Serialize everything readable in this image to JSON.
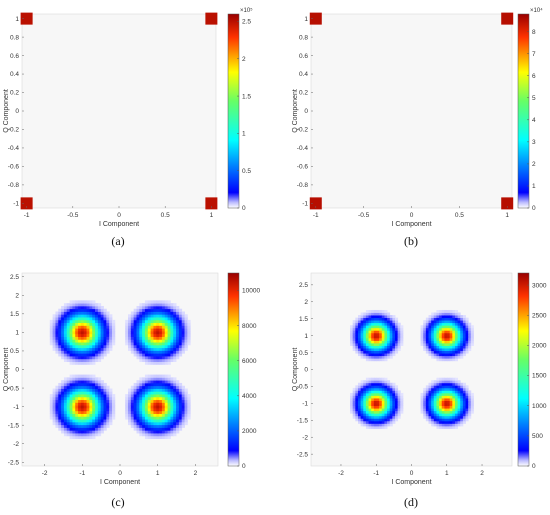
{
  "chart_data": [
    {
      "type": "heatmap",
      "caption": "(a)",
      "xlabel": "I Component",
      "ylabel": "Q Component",
      "xlim": [
        -1.05,
        1.05
      ],
      "ylim": [
        -1.05,
        1.05
      ],
      "xticks": [
        -1,
        -0.5,
        0,
        0.5,
        1
      ],
      "yticks": [
        -1,
        -0.8,
        -0.6,
        -0.4,
        -0.2,
        0,
        0.2,
        0.4,
        0.6,
        0.8,
        1
      ],
      "clusters": [
        {
          "i": -1,
          "q": 1,
          "spread": 0,
          "peak": 250000
        },
        {
          "i": 1,
          "q": 1,
          "spread": 0,
          "peak": 250000
        },
        {
          "i": -1,
          "q": -1,
          "spread": 0,
          "peak": 250000
        },
        {
          "i": 1,
          "q": -1,
          "spread": 0,
          "peak": 250000
        }
      ],
      "colorbar": {
        "min": 0,
        "max": 260000,
        "ticks": [
          0,
          0.5,
          1,
          1.5,
          2,
          2.5
        ],
        "exponent": "×10⁵",
        "scale": 100000
      }
    },
    {
      "type": "heatmap",
      "caption": "(b)",
      "xlabel": "I Component",
      "ylabel": "Q Component",
      "xlim": [
        -1.05,
        1.05
      ],
      "ylim": [
        -1.05,
        1.05
      ],
      "xticks": [
        -1,
        -0.5,
        0,
        0.5,
        1
      ],
      "yticks": [
        -1,
        -0.8,
        -0.6,
        -0.4,
        -0.2,
        0,
        0.2,
        0.4,
        0.6,
        0.8,
        1
      ],
      "clusters": [
        {
          "i": -1,
          "q": 1,
          "spread": 0,
          "peak": 85000
        },
        {
          "i": 1,
          "q": 1,
          "spread": 0,
          "peak": 85000
        },
        {
          "i": -1,
          "q": -1,
          "spread": 0,
          "peak": 85000
        },
        {
          "i": 1,
          "q": -1,
          "spread": 0,
          "peak": 85000
        }
      ],
      "colorbar": {
        "min": 0,
        "max": 88000,
        "ticks": [
          0,
          1,
          2,
          3,
          4,
          5,
          6,
          7,
          8
        ],
        "exponent": "×10⁴",
        "scale": 10000
      }
    },
    {
      "type": "heatmap",
      "caption": "(c)",
      "xlabel": "I Component",
      "ylabel": "Q Component",
      "xlim": [
        -2.6,
        2.6
      ],
      "ylim": [
        -2.6,
        2.6
      ],
      "xticks": [
        -2,
        -1,
        0,
        1,
        2
      ],
      "yticks": [
        -2.5,
        -2,
        -1.5,
        -1,
        -0.5,
        0,
        0.5,
        1,
        1.5,
        2,
        2.5
      ],
      "clusters": [
        {
          "i": -1,
          "q": 1,
          "spread": 0.3,
          "peak": 10500
        },
        {
          "i": 1,
          "q": 1,
          "spread": 0.3,
          "peak": 10500
        },
        {
          "i": -1,
          "q": -1,
          "spread": 0.3,
          "peak": 10500
        },
        {
          "i": 1,
          "q": -1,
          "spread": 0.3,
          "peak": 10500
        }
      ],
      "colorbar": {
        "min": 0,
        "max": 11000,
        "ticks": [
          0,
          2000,
          4000,
          6000,
          8000,
          10000
        ],
        "exponent": "",
        "scale": 1
      }
    },
    {
      "type": "heatmap",
      "caption": "(d)",
      "xlabel": "I Component",
      "ylabel": "Q Component",
      "xlim": [
        -2.85,
        2.85
      ],
      "ylim": [
        -2.85,
        2.85
      ],
      "xticks": [
        -2,
        -1,
        0,
        1,
        2
      ],
      "yticks": [
        -2.5,
        -2,
        -1.5,
        -1,
        -0.5,
        0,
        0.5,
        1,
        1.5,
        2,
        2.5
      ],
      "clusters": [
        {
          "i": -1,
          "q": 1,
          "spread": 0.26,
          "peak": 3050
        },
        {
          "i": 1,
          "q": 1,
          "spread": 0.26,
          "peak": 3050
        },
        {
          "i": -1,
          "q": -1,
          "spread": 0.26,
          "peak": 3050
        },
        {
          "i": 1,
          "q": -1,
          "spread": 0.26,
          "peak": 3050
        }
      ],
      "colorbar": {
        "min": 0,
        "max": 3200,
        "ticks": [
          0,
          500,
          1000,
          1500,
          2000,
          2500,
          3000
        ],
        "exponent": "",
        "scale": 1
      }
    }
  ]
}
